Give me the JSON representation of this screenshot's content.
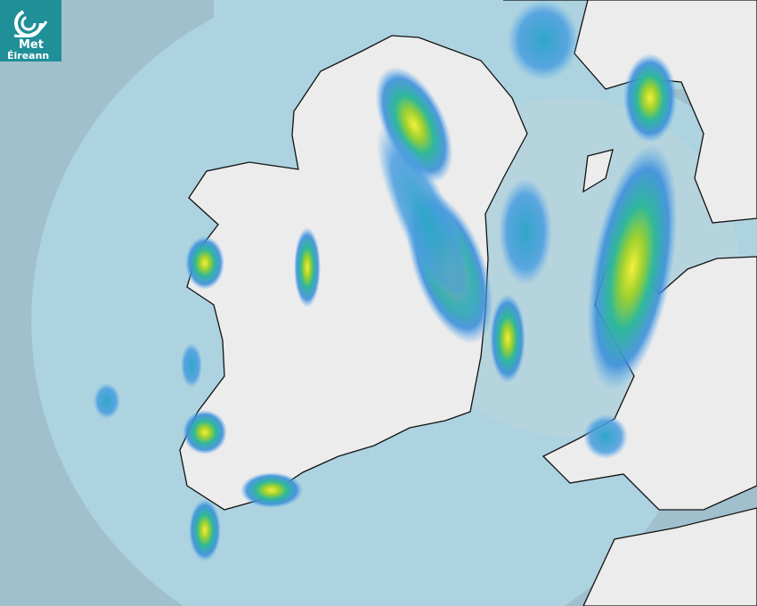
{
  "logo": {
    "line1": "Met",
    "line2": "Éireann"
  },
  "map": {
    "type": "rain-radar",
    "colors": {
      "sea_outside_coverage": "#9fc0cc",
      "sea_radar_coverage": "#acd3df",
      "land": "#eeeeee",
      "rain_light": "#4a9de0",
      "rain_moderate": "#2fb89a",
      "rain_heavy": "#9ed12f",
      "rain_intense": "#f4ef3a",
      "logo_bg": "#1f8f98"
    }
  }
}
